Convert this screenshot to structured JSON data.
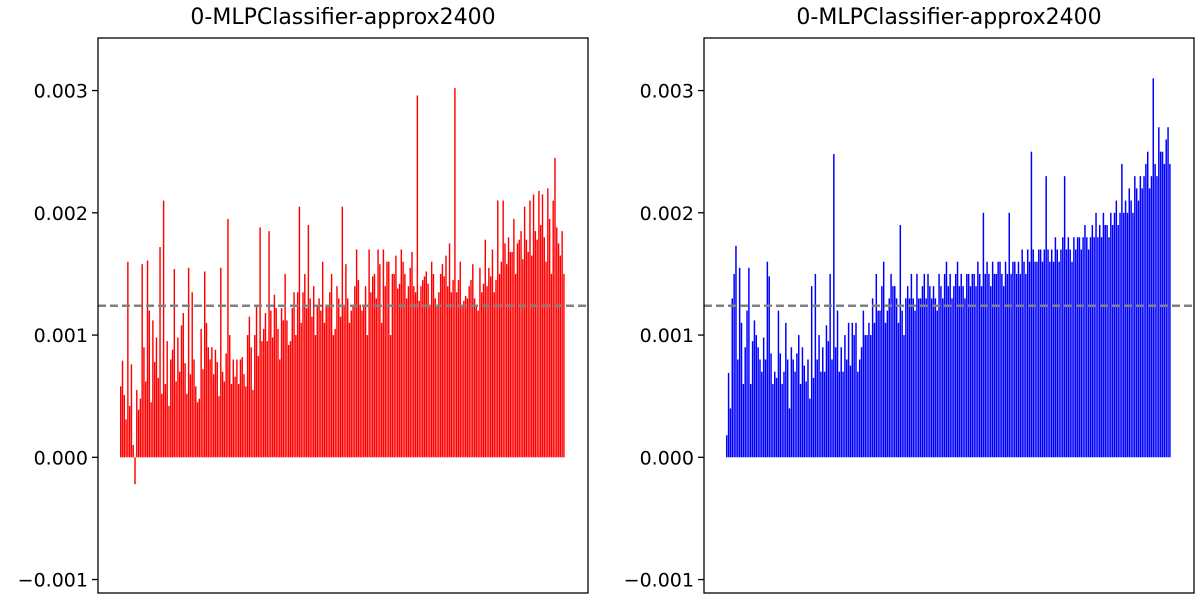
{
  "chart_data": [
    {
      "type": "bar",
      "title": "0-MLPClassifier-approx2400",
      "xlabel": "",
      "ylabel": "",
      "ylim": [
        -0.00111,
        0.00343
      ],
      "yticks": [
        -0.001,
        0.0,
        0.001,
        0.002,
        0.003
      ],
      "ytick_labels": [
        "−0.001",
        "0.000",
        "0.001",
        "0.002",
        "0.003"
      ],
      "reference_line": {
        "y": 0.00124,
        "style": "dashed",
        "color": "#808080"
      },
      "bar_color": "#ff0000",
      "x_ticks_shown": false,
      "bar_count": 240,
      "values": [
        0.00058,
        0.00079,
        0.00051,
        0.00031,
        0.0016,
        0.00042,
        0.00076,
        0.0001,
        -0.00022,
        0.00055,
        0.00039,
        0.00048,
        0.00158,
        0.0009,
        0.00062,
        0.00161,
        0.0012,
        0.00045,
        0.00112,
        0.00078,
        0.00098,
        0.00065,
        0.00172,
        0.00052,
        0.0021,
        0.0006,
        0.00095,
        0.00042,
        0.0008,
        0.00088,
        0.00154,
        0.00062,
        0.00098,
        0.0007,
        0.00108,
        0.00118,
        0.00077,
        0.00052,
        0.00155,
        0.00068,
        0.00135,
        0.0008,
        0.00058,
        0.00045,
        0.00048,
        0.00105,
        0.00072,
        0.00152,
        0.0011,
        0.0009,
        0.0008,
        0.0009,
        0.00068,
        0.00088,
        0.00078,
        0.0005,
        0.00155,
        0.0007,
        0.00062,
        0.00085,
        0.00195,
        0.001,
        0.0006,
        0.0008,
        0.00066,
        0.0008,
        0.0006,
        0.0008,
        0.00082,
        0.00068,
        0.00058,
        0.001,
        0.00115,
        0.0009,
        0.00055,
        0.001,
        0.00124,
        0.00083,
        0.00188,
        0.00095,
        0.00105,
        0.00118,
        0.00095,
        0.00185,
        0.0012,
        0.00098,
        0.00133,
        0.00122,
        0.00105,
        0.0008,
        0.00122,
        0.00112,
        0.0015,
        0.00112,
        0.00092,
        0.00095,
        0.00122,
        0.00135,
        0.001,
        0.00135,
        0.00205,
        0.0011,
        0.00135,
        0.0015,
        0.00122,
        0.0019,
        0.0013,
        0.00115,
        0.0014,
        0.001,
        0.00125,
        0.0013,
        0.0012,
        0.0016,
        0.0011,
        0.00125,
        0.00125,
        0.00135,
        0.0015,
        0.001,
        0.00105,
        0.0014,
        0.0013,
        0.00115,
        0.00205,
        0.00125,
        0.00158,
        0.0013,
        0.0011,
        0.0012,
        0.00125,
        0.0014,
        0.0017,
        0.00145,
        0.00125,
        0.0012,
        0.00125,
        0.0014,
        0.001,
        0.0017,
        0.00135,
        0.00148,
        0.0015,
        0.0013,
        0.0017,
        0.00158,
        0.0011,
        0.0017,
        0.0014,
        0.0016,
        0.0016,
        0.001,
        0.0015,
        0.0015,
        0.00165,
        0.00138,
        0.00142,
        0.0017,
        0.0016,
        0.0015,
        0.0013,
        0.0014,
        0.00155,
        0.00168,
        0.0014,
        0.00135,
        0.00296,
        0.00128,
        0.0014,
        0.00145,
        0.00148,
        0.00152,
        0.00142,
        0.00125,
        0.0016,
        0.0015,
        0.0013,
        0.00125,
        0.00135,
        0.0015,
        0.00158,
        0.00148,
        0.00165,
        0.0014,
        0.00175,
        0.00135,
        0.00145,
        0.00302,
        0.00135,
        0.00145,
        0.0016,
        0.00125,
        0.00128,
        0.00132,
        0.0013,
        0.0014,
        0.00145,
        0.00158,
        0.0013,
        0.00125,
        0.0012,
        0.00155,
        0.00135,
        0.00142,
        0.00178,
        0.0014,
        0.00155,
        0.00148,
        0.0017,
        0.00135,
        0.00145,
        0.0021,
        0.0015,
        0.0016,
        0.0021,
        0.00175,
        0.00158,
        0.0018,
        0.00168,
        0.00168,
        0.00195,
        0.0015,
        0.00175,
        0.00178,
        0.00185,
        0.00162,
        0.00205,
        0.00178,
        0.00168,
        0.0021,
        0.00165,
        0.00215,
        0.00185,
        0.00178,
        0.00218,
        0.0019,
        0.00215,
        0.0018,
        0.0016,
        0.0022,
        0.00195,
        0.0015,
        0.0021,
        0.00245,
        0.00188,
        0.00175,
        0.00165,
        0.00185,
        0.0015
      ]
    },
    {
      "type": "bar",
      "title": "0-MLPClassifier-approx2400",
      "xlabel": "",
      "ylabel": "",
      "ylim": [
        -0.00111,
        0.00343
      ],
      "yticks": [
        -0.001,
        0.0,
        0.001,
        0.002,
        0.003
      ],
      "ytick_labels": [
        "−0.001",
        "0.000",
        "0.001",
        "0.002",
        "0.003"
      ],
      "reference_line": {
        "y": 0.00124,
        "style": "dashed",
        "color": "#808080"
      },
      "bar_color": "#0000ff",
      "x_ticks_shown": false,
      "bar_count": 240,
      "values": [
        0.00018,
        0.00069,
        0.0004,
        0.0013,
        0.0015,
        0.00173,
        0.0008,
        0.00155,
        0.0011,
        0.0006,
        0.0009,
        0.0012,
        0.00155,
        0.0006,
        0.00095,
        0.00112,
        0.001,
        0.0009,
        0.0008,
        0.0007,
        0.00098,
        0.0008,
        0.0016,
        0.00148,
        0.00085,
        0.0006,
        0.0007,
        0.00065,
        0.0012,
        0.00085,
        0.0006,
        0.0007,
        0.0011,
        0.0008,
        0.0004,
        0.0009,
        0.0008,
        0.0007,
        0.00085,
        0.001,
        0.0006,
        0.0009,
        0.00075,
        0.00062,
        0.0008,
        0.00048,
        0.0014,
        0.00065,
        0.0015,
        0.0008,
        0.001,
        0.0007,
        0.0009,
        0.0007,
        0.00108,
        0.00095,
        0.0015,
        0.0008,
        0.00248,
        0.0009,
        0.0012,
        0.0007,
        0.0009,
        0.0007,
        0.001,
        0.0008,
        0.0011,
        0.00075,
        0.0011,
        0.001,
        0.0011,
        0.0007,
        0.0008,
        0.0009,
        0.0012,
        0.001,
        0.001,
        0.0011,
        0.001,
        0.0013,
        0.0011,
        0.0015,
        0.0012,
        0.0012,
        0.0014,
        0.0016,
        0.0011,
        0.0012,
        0.0013,
        0.0015,
        0.0014,
        0.0014,
        0.0013,
        0.0011,
        0.0019,
        0.0012,
        0.001,
        0.0013,
        0.0014,
        0.0013,
        0.0015,
        0.0013,
        0.0012,
        0.0015,
        0.0013,
        0.0013,
        0.0014,
        0.0015,
        0.0013,
        0.0015,
        0.0014,
        0.0013,
        0.0014,
        0.0013,
        0.0012,
        0.0015,
        0.0014,
        0.0013,
        0.0015,
        0.0016,
        0.0014,
        0.0015,
        0.0013,
        0.0014,
        0.0015,
        0.0016,
        0.0014,
        0.0015,
        0.0014,
        0.0013,
        0.0015,
        0.0015,
        0.0014,
        0.0015,
        0.0015,
        0.0014,
        0.0016,
        0.0015,
        0.0014,
        0.002,
        0.0015,
        0.0016,
        0.0015,
        0.0014,
        0.0016,
        0.0015,
        0.0015,
        0.0016,
        0.0016,
        0.0015,
        0.0014,
        0.0016,
        0.0015,
        0.002,
        0.0015,
        0.0016,
        0.0016,
        0.0015,
        0.0016,
        0.0015,
        0.0017,
        0.0016,
        0.0015,
        0.0017,
        0.0016,
        0.0025,
        0.0017,
        0.0016,
        0.0016,
        0.0017,
        0.0017,
        0.0016,
        0.0017,
        0.0023,
        0.0017,
        0.0016,
        0.0017,
        0.0016,
        0.0018,
        0.0017,
        0.0016,
        0.0017,
        0.0018,
        0.0023,
        0.0017,
        0.0018,
        0.0017,
        0.0016,
        0.0018,
        0.0017,
        0.0018,
        0.0018,
        0.0017,
        0.0018,
        0.0019,
        0.0018,
        0.0017,
        0.0018,
        0.0019,
        0.0018,
        0.002,
        0.0018,
        0.0019,
        0.0018,
        0.002,
        0.0019,
        0.0019,
        0.0018,
        0.002,
        0.0019,
        0.002,
        0.0021,
        0.0019,
        0.002,
        0.0024,
        0.002,
        0.0021,
        0.002,
        0.0022,
        0.0021,
        0.002,
        0.0023,
        0.0022,
        0.0021,
        0.0023,
        0.0022,
        0.0023,
        0.0024,
        0.0025,
        0.0022,
        0.0023,
        0.0031,
        0.0024,
        0.0023,
        0.0027,
        0.0025,
        0.0025,
        0.0024,
        0.0026,
        0.0027,
        0.0024
      ]
    }
  ]
}
